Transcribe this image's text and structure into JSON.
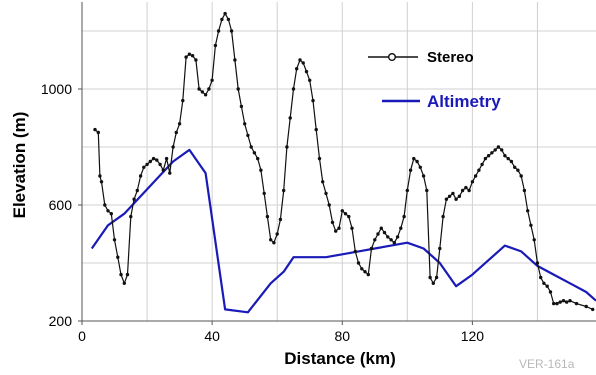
{
  "chart_data": {
    "type": "line",
    "xlabel": "Distance (km)",
    "ylabel": "Elevation (m)",
    "xlim": [
      0,
      158
    ],
    "ylim": [
      200,
      1300
    ],
    "xticks": [
      0,
      40,
      80,
      120
    ],
    "yticks": [
      200,
      600,
      1000
    ],
    "x_tick_labels": [
      "0",
      "40",
      "80",
      "120"
    ],
    "y_tick_labels": [
      "200",
      "600",
      "1000"
    ],
    "grid": true,
    "legend_position": "top-right",
    "series": [
      {
        "name": "Stereo",
        "color": "#111111",
        "marker": "circle",
        "points": [
          [
            4,
            860
          ],
          [
            5,
            850
          ],
          [
            5.5,
            700
          ],
          [
            6,
            680
          ],
          [
            7,
            600
          ],
          [
            8,
            580
          ],
          [
            9,
            570
          ],
          [
            10,
            480
          ],
          [
            11,
            420
          ],
          [
            12,
            360
          ],
          [
            13,
            330
          ],
          [
            14,
            360
          ],
          [
            15,
            560
          ],
          [
            16,
            620
          ],
          [
            17,
            650
          ],
          [
            18,
            700
          ],
          [
            19,
            730
          ],
          [
            20,
            740
          ],
          [
            21,
            750
          ],
          [
            22,
            760
          ],
          [
            23,
            755
          ],
          [
            24,
            740
          ],
          [
            25,
            720
          ],
          [
            26,
            760
          ],
          [
            27,
            710
          ],
          [
            28,
            800
          ],
          [
            29,
            850
          ],
          [
            30,
            880
          ],
          [
            31,
            960
          ],
          [
            32,
            1110
          ],
          [
            33,
            1120
          ],
          [
            34,
            1115
          ],
          [
            35,
            1100
          ],
          [
            36,
            1000
          ],
          [
            37,
            990
          ],
          [
            38,
            980
          ],
          [
            39,
            1000
          ],
          [
            40,
            1030
          ],
          [
            41,
            1150
          ],
          [
            42,
            1200
          ],
          [
            43,
            1240
          ],
          [
            44,
            1260
          ],
          [
            45,
            1240
          ],
          [
            46,
            1200
          ],
          [
            47,
            1100
          ],
          [
            48,
            1000
          ],
          [
            49,
            940
          ],
          [
            50,
            880
          ],
          [
            51,
            840
          ],
          [
            52,
            800
          ],
          [
            53,
            780
          ],
          [
            54,
            760
          ],
          [
            55,
            720
          ],
          [
            56,
            640
          ],
          [
            57,
            560
          ],
          [
            58,
            480
          ],
          [
            59,
            470
          ],
          [
            60,
            500
          ],
          [
            61,
            550
          ],
          [
            62,
            650
          ],
          [
            63,
            800
          ],
          [
            64,
            900
          ],
          [
            65,
            1000
          ],
          [
            66,
            1070
          ],
          [
            67,
            1100
          ],
          [
            68,
            1090
          ],
          [
            69,
            1060
          ],
          [
            70,
            1030
          ],
          [
            71,
            960
          ],
          [
            72,
            860
          ],
          [
            73,
            760
          ],
          [
            74,
            680
          ],
          [
            75,
            640
          ],
          [
            76,
            600
          ],
          [
            77,
            540
          ],
          [
            78,
            510
          ],
          [
            79,
            520
          ],
          [
            80,
            580
          ],
          [
            81,
            570
          ],
          [
            82,
            560
          ],
          [
            83,
            520
          ],
          [
            84,
            440
          ],
          [
            85,
            400
          ],
          [
            86,
            380
          ],
          [
            87,
            370
          ],
          [
            88,
            360
          ],
          [
            89,
            450
          ],
          [
            90,
            480
          ],
          [
            91,
            500
          ],
          [
            92,
            520
          ],
          [
            93,
            505
          ],
          [
            94,
            490
          ],
          [
            95,
            480
          ],
          [
            96,
            470
          ],
          [
            97,
            490
          ],
          [
            98,
            520
          ],
          [
            99,
            560
          ],
          [
            100,
            650
          ],
          [
            101,
            720
          ],
          [
            102,
            760
          ],
          [
            103,
            750
          ],
          [
            104,
            730
          ],
          [
            105,
            700
          ],
          [
            106,
            650
          ],
          [
            107,
            350
          ],
          [
            108,
            330
          ],
          [
            109,
            350
          ],
          [
            110,
            450
          ],
          [
            111,
            560
          ],
          [
            112,
            620
          ],
          [
            113,
            630
          ],
          [
            114,
            640
          ],
          [
            115,
            620
          ],
          [
            116,
            630
          ],
          [
            117,
            650
          ],
          [
            118,
            660
          ],
          [
            119,
            650
          ],
          [
            120,
            680
          ],
          [
            121,
            700
          ],
          [
            122,
            720
          ],
          [
            123,
            740
          ],
          [
            124,
            760
          ],
          [
            125,
            770
          ],
          [
            126,
            780
          ],
          [
            127,
            790
          ],
          [
            128,
            800
          ],
          [
            129,
            790
          ],
          [
            130,
            770
          ],
          [
            131,
            760
          ],
          [
            132,
            750
          ],
          [
            133,
            730
          ],
          [
            134,
            720
          ],
          [
            135,
            700
          ],
          [
            136,
            650
          ],
          [
            137,
            580
          ],
          [
            138,
            530
          ],
          [
            139,
            480
          ],
          [
            140,
            400
          ],
          [
            141,
            350
          ],
          [
            142,
            330
          ],
          [
            143,
            320
          ],
          [
            144,
            300
          ],
          [
            145,
            260
          ],
          [
            146,
            260
          ],
          [
            147,
            265
          ],
          [
            148,
            270
          ],
          [
            149,
            265
          ],
          [
            150,
            270
          ],
          [
            152,
            260
          ],
          [
            155,
            250
          ],
          [
            157,
            240
          ]
        ]
      },
      {
        "name": "Altimetry",
        "color": "#1a1ab8",
        "marker": "none",
        "points": [
          [
            3,
            450
          ],
          [
            8,
            530
          ],
          [
            13,
            570
          ],
          [
            18,
            630
          ],
          [
            23,
            690
          ],
          [
            28,
            750
          ],
          [
            33,
            790
          ],
          [
            38,
            710
          ],
          [
            44,
            240
          ],
          [
            51,
            230
          ],
          [
            58,
            330
          ],
          [
            62,
            370
          ],
          [
            65,
            420
          ],
          [
            70,
            420
          ],
          [
            75,
            420
          ],
          [
            80,
            430
          ],
          [
            85,
            440
          ],
          [
            90,
            450
          ],
          [
            95,
            460
          ],
          [
            100,
            470
          ],
          [
            105,
            450
          ],
          [
            110,
            400
          ],
          [
            115,
            320
          ],
          [
            120,
            360
          ],
          [
            125,
            410
          ],
          [
            130,
            460
          ],
          [
            135,
            440
          ],
          [
            140,
            390
          ],
          [
            145,
            360
          ],
          [
            150,
            330
          ],
          [
            155,
            300
          ],
          [
            158,
            270
          ]
        ]
      }
    ]
  },
  "legend": {
    "stereo_label": "Stereo",
    "altimetry_label": "Altimetry"
  },
  "credit": "VER-161a"
}
